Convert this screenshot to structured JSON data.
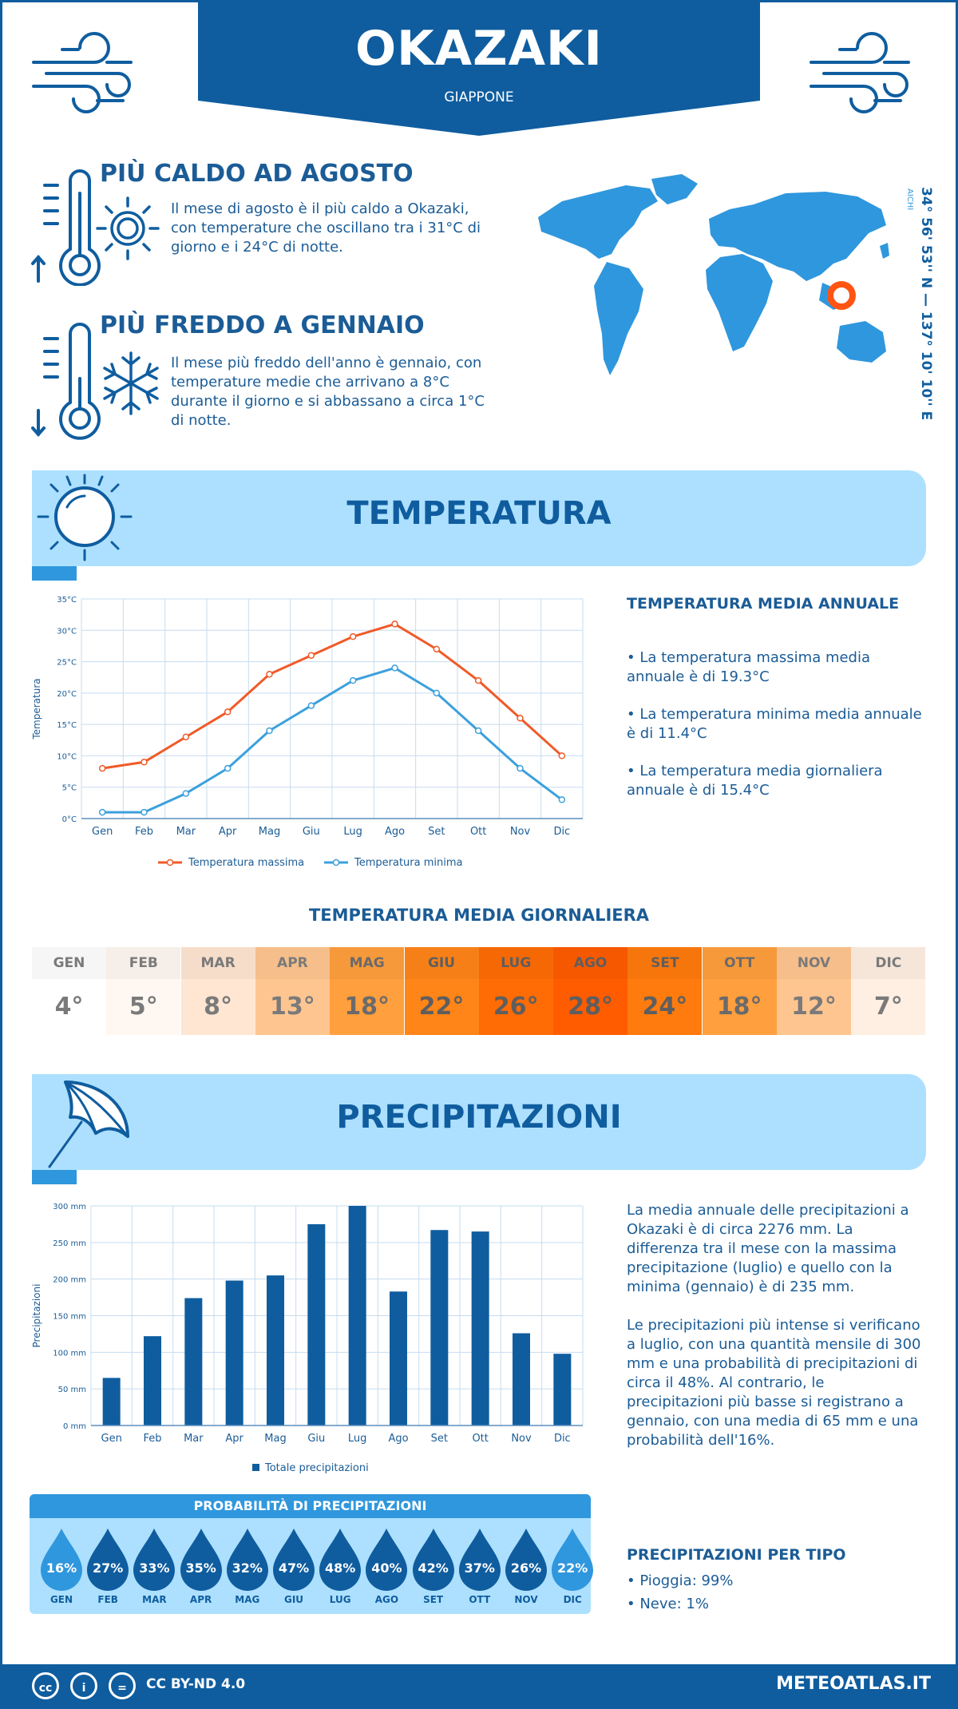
{
  "header": {
    "city": "OKAZAKI",
    "country": "GIAPPONE"
  },
  "hot": {
    "title": "PIÙ CALDO AD AGOSTO",
    "text": "Il mese di agosto è il più caldo a Okazaki, con temperature che oscillano tra i 31°C di giorno e i 24°C di notte."
  },
  "cold": {
    "title": "PIÙ FREDDO A GENNAIO",
    "text": "Il mese più freddo dell'anno è gennaio, con temperature medie che arrivano a 8°C durante il giorno e si abbassano a circa 1°C di notte."
  },
  "location": {
    "coords": "34° 56' 53'' N — 137° 10' 10'' E",
    "region": "AICHI"
  },
  "temperature_section": {
    "title": "TEMPERATURA",
    "annual_title": "TEMPERATURA MEDIA ANNUALE",
    "bullets": [
      "• La temperatura massima media annuale è di 19.3°C",
      "• La temperatura minima media annuale è di 11.4°C",
      "• La temperatura media giornaliera annuale è di 15.4°C"
    ],
    "daily_title": "TEMPERATURA MEDIA GIORNALIERA",
    "daily": [
      {
        "month": "GEN",
        "value": "4°",
        "bg": "#ffffff",
        "fg": "#7a7a7a"
      },
      {
        "month": "FEB",
        "value": "5°",
        "bg": "#fff8f2",
        "fg": "#7a7a7a"
      },
      {
        "month": "MAR",
        "value": "8°",
        "bg": "#ffe6d2",
        "fg": "#7a7a7a"
      },
      {
        "month": "APR",
        "value": "13°",
        "bg": "#ffc590",
        "fg": "#7a7a7a"
      },
      {
        "month": "MAG",
        "value": "18°",
        "bg": "#ff9f3e",
        "fg": "#6a6a6a"
      },
      {
        "month": "GIU",
        "value": "22°",
        "bg": "#ff8518",
        "fg": "#5e5e5e"
      },
      {
        "month": "LUG",
        "value": "26°",
        "bg": "#ff6c05",
        "fg": "#5e5e5e"
      },
      {
        "month": "AGO",
        "value": "28°",
        "bg": "#ff5c00",
        "fg": "#5e5e5e"
      },
      {
        "month": "SET",
        "value": "24°",
        "bg": "#ff7b0d",
        "fg": "#5e5e5e"
      },
      {
        "month": "OTT",
        "value": "18°",
        "bg": "#ff9f3e",
        "fg": "#6a6a6a"
      },
      {
        "month": "NOV",
        "value": "12°",
        "bg": "#ffc590",
        "fg": "#7a7a7a"
      },
      {
        "month": "DIC",
        "value": "7°",
        "bg": "#ffefe2",
        "fg": "#7a7a7a"
      }
    ]
  },
  "precip_section": {
    "title": "PRECIPITAZIONI",
    "text1": "La media annuale delle precipitazioni a Okazaki è di circa 2276 mm. La differenza tra il mese con la massima precipitazione (luglio) e quello con la minima (gennaio) è di 235 mm.",
    "text2": "Le precipitazioni più intense si verificano a luglio, con una quantità mensile di 300 mm e una probabilità di precipitazioni di circa il 48%. Al contrario, le precipitazioni più basse si registrano a gennaio, con una media di 65 mm e una probabilità dell'16%.",
    "prob_title": "PROBABILITÀ DI PRECIPITAZIONI",
    "probabilities": [
      {
        "month": "GEN",
        "value": "16%",
        "color": "#2f97dd"
      },
      {
        "month": "FEB",
        "value": "27%",
        "color": "#0f5d9f"
      },
      {
        "month": "MAR",
        "value": "33%",
        "color": "#0f5d9f"
      },
      {
        "month": "APR",
        "value": "35%",
        "color": "#0f5d9f"
      },
      {
        "month": "MAG",
        "value": "32%",
        "color": "#0f5d9f"
      },
      {
        "month": "GIU",
        "value": "47%",
        "color": "#0f5d9f"
      },
      {
        "month": "LUG",
        "value": "48%",
        "color": "#0f5d9f"
      },
      {
        "month": "AGO",
        "value": "40%",
        "color": "#0f5d9f"
      },
      {
        "month": "SET",
        "value": "42%",
        "color": "#0f5d9f"
      },
      {
        "month": "OTT",
        "value": "37%",
        "color": "#0f5d9f"
      },
      {
        "month": "NOV",
        "value": "26%",
        "color": "#0f5d9f"
      },
      {
        "month": "DIC",
        "value": "22%",
        "color": "#2f97dd"
      }
    ],
    "type_title": "PRECIPITAZIONI PER TIPO",
    "types": [
      "• Pioggia: 99%",
      "• Neve: 1%"
    ]
  },
  "footer": {
    "license": "CC BY-ND 4.0",
    "site": "METEOATLAS.IT"
  },
  "chart_data": [
    {
      "type": "line",
      "categories": [
        "Gen",
        "Feb",
        "Mar",
        "Apr",
        "Mag",
        "Giu",
        "Lug",
        "Ago",
        "Set",
        "Ott",
        "Nov",
        "Dic"
      ],
      "series": [
        {
          "name": "Temperatura massima",
          "values": [
            8,
            9,
            13,
            17,
            23,
            26,
            29,
            31,
            27,
            22,
            16,
            10
          ],
          "color": "#f05a28"
        },
        {
          "name": "Temperatura minima",
          "values": [
            1,
            1,
            4,
            8,
            14,
            18,
            22,
            24,
            20,
            14,
            8,
            3
          ],
          "color": "#3ca0dc"
        }
      ],
      "ylabel": "Temperatura",
      "ylim": [
        0,
        35
      ],
      "yticks": [
        "0°C",
        "5°C",
        "10°C",
        "15°C",
        "20°C",
        "25°C",
        "30°C",
        "35°C"
      ],
      "grid": true,
      "legend": "bottom"
    },
    {
      "type": "bar",
      "categories": [
        "Gen",
        "Feb",
        "Mar",
        "Apr",
        "Mag",
        "Giu",
        "Lug",
        "Ago",
        "Set",
        "Ott",
        "Nov",
        "Dic"
      ],
      "series": [
        {
          "name": "Totale precipitazioni",
          "values": [
            65,
            122,
            174,
            198,
            205,
            275,
            300,
            183,
            267,
            265,
            126,
            98
          ],
          "color": "#0f5d9f"
        }
      ],
      "ylabel": "Precipitazioni",
      "ylim": [
        0,
        300
      ],
      "yticks": [
        "0 mm",
        "50 mm",
        "100 mm",
        "150 mm",
        "200 mm",
        "250 mm",
        "300 mm"
      ],
      "grid": true,
      "legend": "bottom"
    }
  ]
}
